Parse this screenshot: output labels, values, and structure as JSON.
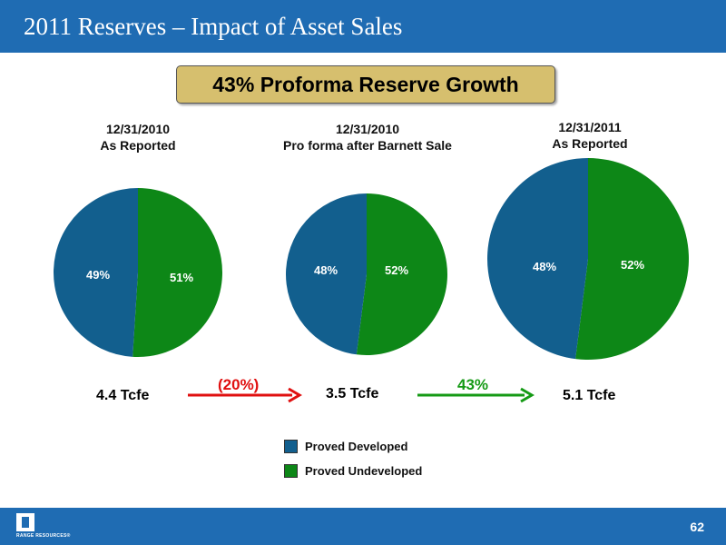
{
  "header": {
    "title": "2011 Reserves – Impact of Asset Sales"
  },
  "banner": {
    "text": "43% Proforma Reserve Growth"
  },
  "chart_data": {
    "type": "pie",
    "series_colors": {
      "Proved Developed": "#125f8e",
      "Proved Undeveloped": "#0d8717"
    },
    "legend": [
      "Proved Developed",
      "Proved Undeveloped"
    ],
    "charts": [
      {
        "title_line1": "12/31/2010",
        "title_line2": "As Reported",
        "slices": [
          {
            "label": "Proved Developed",
            "value": 49,
            "text": "49%"
          },
          {
            "label": "Proved Undeveloped",
            "value": 51,
            "text": "51%"
          }
        ],
        "total": "4.4  Tcfe"
      },
      {
        "title_line1": "12/31/2010",
        "title_line2": "Pro forma after Barnett Sale",
        "slices": [
          {
            "label": "Proved Developed",
            "value": 48,
            "text": "48%"
          },
          {
            "label": "Proved Undeveloped",
            "value": 52,
            "text": "52%"
          }
        ],
        "total": "3.5 Tcfe"
      },
      {
        "title_line1": "12/31/2011",
        "title_line2": "As Reported",
        "slices": [
          {
            "label": "Proved Developed",
            "value": 48,
            "text": "48%"
          },
          {
            "label": "Proved Undeveloped",
            "value": 52,
            "text": "52%"
          }
        ],
        "total": "5.1 Tcfe"
      }
    ],
    "changes": [
      {
        "text": "(20%)",
        "color": "#e01010"
      },
      {
        "text": "43%",
        "color": "#159a15"
      }
    ]
  },
  "footer": {
    "logo_text": "RANGE RESOURCES®",
    "page_number": "62"
  }
}
